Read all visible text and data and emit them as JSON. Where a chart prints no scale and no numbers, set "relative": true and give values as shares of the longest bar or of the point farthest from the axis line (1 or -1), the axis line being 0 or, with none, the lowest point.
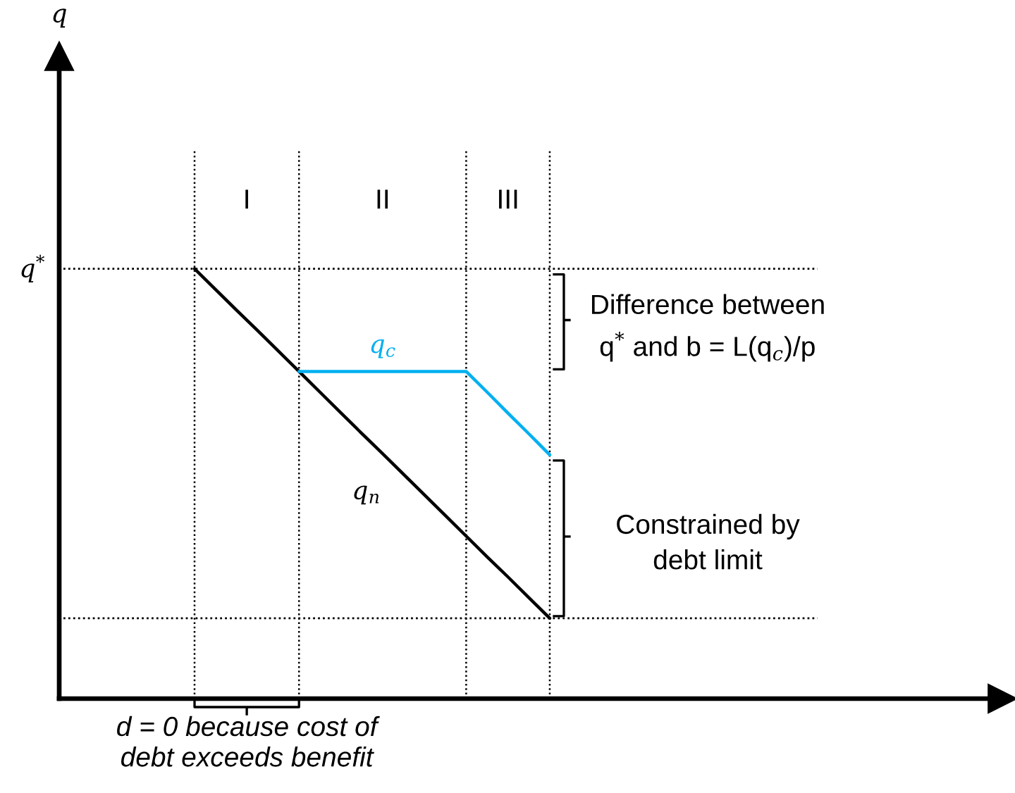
{
  "chart_data": {
    "type": "line",
    "relative": true,
    "grid": "x",
    "categories": [
      null,
      null,
      null,
      null,
      null,
      null,
      null,
      null,
      null,
      null,
      null,
      null,
      null,
      null,
      null,
      null,
      null,
      null
    ],
    "series": [
      {
        "name": "q$_{n}$",
        "color": "#000000",
        "values": [
          1.0,
          0.952,
          0.904,
          0.857,
          0.809,
          0.761,
          0.713,
          0.665,
          0.617,
          0.57,
          0.522,
          0.474,
          0.426,
          0.378,
          0.33,
          0.283,
          0.235,
          0.187
        ]
      },
      {
        "name": "q$_{c}$",
        "color": "#00b0f0",
        "values": [
          null,
          null,
          null,
          null,
          null,
          0.761,
          0.761,
          0.761,
          0.761,
          0.761,
          0.761,
          0.761,
          0.761,
          0.761,
          0.713,
          0.664,
          0.616,
          0.567
        ]
      }
    ],
    "ref_lines": [
      {
        "axis": "y",
        "value": 1.0,
        "label": "q$^{*}$",
        "line_style": "dotted"
      },
      {
        "axis": "y",
        "value": 0.187,
        "line_style": "dotted"
      }
    ],
    "annotations": [
      "q",
      "I",
      "II",
      "III",
      "Difference between\nq$^{*}$ and b = L(q$_{c}$)/p",
      "Constrained by\ndebt limit",
      "d = 0 because cost of\ndebt exceeds benefit"
    ]
  }
}
